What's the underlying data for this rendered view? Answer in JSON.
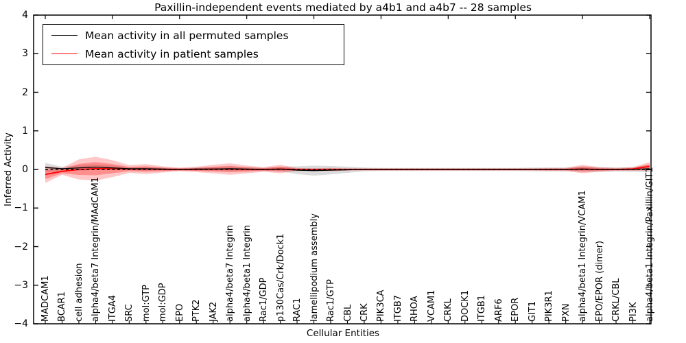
{
  "figure": {
    "title": "Paxillin-independent events mediated by a4b1 and a4b7 -- 28 samples",
    "xlabel": "Cellular Entities",
    "ylabel": "Inferred Activity"
  },
  "legend": {
    "items": [
      {
        "label": "Mean activity in all permuted samples",
        "color": "#000000"
      },
      {
        "label": "Mean activity in patient samples",
        "color": "#ff0000"
      }
    ]
  },
  "chart_data": {
    "type": "line",
    "title": "Paxillin-independent events mediated by a4b1 and a4b7 -- 28 samples",
    "xlabel": "Cellular Entities",
    "ylabel": "Inferred Activity",
    "ylim": [
      -4,
      4
    ],
    "yticks": [
      4,
      3,
      2,
      1,
      0,
      -1,
      -2,
      -3,
      -4
    ],
    "grid": false,
    "legend_position": "upper left",
    "zero_line": {
      "style": "dashed",
      "color": "#000000"
    },
    "categories": [
      "MADCAM1",
      "BCAR1",
      "cell adhesion",
      "alpha4/beta7 Integrin/MAdCAM1",
      "ITGA4",
      "SRC",
      "mol:GTP",
      "mol:GDP",
      "EPO",
      "PTK2",
      "JAK2",
      "alpha4/beta7 Integrin",
      "alpha4/beta1 Integrin",
      "Rac1/GDP",
      "p130Cas/Crk/Dock1",
      "RAC1",
      "lamellipodium assembly",
      "Rac1/GTP",
      "CBL",
      "CRK",
      "PIK3CA",
      "ITGB7",
      "RHOA",
      "VCAM1",
      "CRKL",
      "DOCK1",
      "ITGB1",
      "ARF6",
      "EPOR",
      "GIT1",
      "PIK3R1",
      "PXN",
      "alpha4/beta1 Integrin/VCAM1",
      "EPO/EPOR (dimer)",
      "CRKL/CBL",
      "PI3K",
      "alpha4/beta1 Integrin/Paxillin/GIT1"
    ],
    "series": [
      {
        "name": "Mean activity in all permuted samples",
        "line_color": "#000000",
        "band_color": "#999999",
        "band_opacity": 0.35,
        "values": [
          0.05,
          0.02,
          0.04,
          0.06,
          0.04,
          0.02,
          0.02,
          0.01,
          0,
          0.01,
          0.01,
          0.02,
          0.01,
          0,
          0.01,
          -0.02,
          -0.03,
          -0.02,
          -0.01,
          0,
          0,
          0,
          0,
          0,
          0,
          0,
          0,
          0,
          0,
          0,
          0,
          0,
          0.01,
          0,
          0,
          0,
          0.02
        ],
        "band_halfwidth": [
          0.12,
          0.05,
          0.07,
          0.07,
          0.06,
          0.04,
          0.05,
          0.04,
          0.03,
          0.04,
          0.05,
          0.06,
          0.05,
          0.04,
          0.06,
          0.1,
          0.13,
          0.11,
          0.08,
          0.05,
          0.04,
          0.04,
          0.04,
          0.04,
          0.04,
          0.04,
          0.04,
          0.04,
          0.04,
          0.05,
          0.05,
          0.05,
          0.07,
          0.06,
          0.05,
          0.06,
          0.09
        ]
      },
      {
        "name": "Mean activity in patient samples",
        "line_color": "#ff0000",
        "band_color": "#ff0000",
        "band_opacity": 0.22,
        "values": [
          -0.13,
          -0.05,
          0,
          0.02,
          0.02,
          0.01,
          0.01,
          0,
          0,
          0,
          0.01,
          0.01,
          0,
          0,
          0.01,
          0,
          0,
          0,
          0,
          0,
          0,
          0,
          0,
          0,
          0,
          0,
          0,
          0,
          0,
          0,
          0,
          0,
          0.01,
          0,
          0,
          0.01,
          0.08
        ],
        "band_halfwidth": [
          0.22,
          0.09,
          0.26,
          0.31,
          0.22,
          0.1,
          0.13,
          0.08,
          0.05,
          0.07,
          0.11,
          0.15,
          0.1,
          0.06,
          0.11,
          0.04,
          0.03,
          0.04,
          0.03,
          0.03,
          0.03,
          0.03,
          0.03,
          0.03,
          0.03,
          0.03,
          0.03,
          0.03,
          0.03,
          0.03,
          0.04,
          0.04,
          0.11,
          0.06,
          0.04,
          0.05,
          0.11
        ]
      }
    ]
  }
}
